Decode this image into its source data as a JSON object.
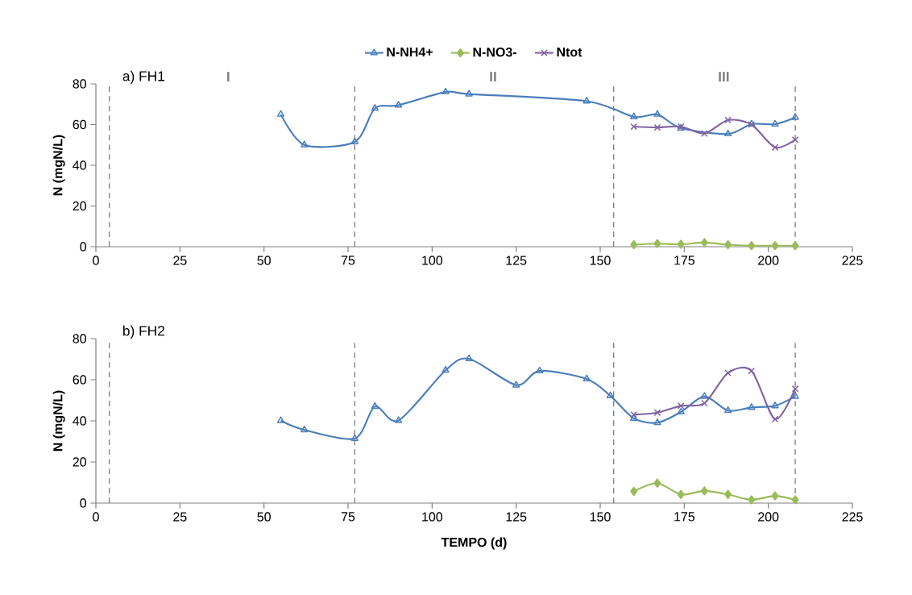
{
  "chart_data": [
    {
      "type": "line",
      "title": "a) FH1",
      "ylabel": "N (mgN/L)",
      "xlim": [
        0,
        225
      ],
      "ylim": [
        0,
        80
      ],
      "xticks": [
        0,
        25,
        50,
        75,
        100,
        125,
        150,
        175,
        200,
        225
      ],
      "yticks": [
        0,
        20,
        40,
        60,
        80
      ],
      "legend": "top",
      "series": [
        {
          "name": "N-NH4+",
          "color": "#4a7ebb",
          "marker": "triangle",
          "x": [
            55,
            62,
            77,
            83,
            90,
            104,
            111,
            146,
            160,
            167,
            174,
            188,
            195,
            202,
            208
          ],
          "values": [
            65,
            50,
            51.5,
            68,
            69.5,
            76,
            75,
            71.5,
            63.8,
            65,
            58.2,
            55.4,
            60.2,
            60.2,
            63.5
          ]
        },
        {
          "name": "N-NO3-",
          "color": "#9bbb59",
          "marker": "diamond",
          "x": [
            160,
            167,
            174,
            181,
            188,
            195,
            202,
            208
          ],
          "values": [
            1,
            1.5,
            1.2,
            2,
            1,
            0.5,
            0.5,
            0.5
          ]
        },
        {
          "name": "Ntot",
          "color": "#8064a2",
          "marker": "cross",
          "x": [
            160,
            167,
            174,
            181,
            188,
            195,
            202,
            208
          ],
          "values": [
            59,
            58.6,
            59,
            55.6,
            62.2,
            60,
            48.8,
            52.5
          ]
        }
      ],
      "ref_lines": [
        {
          "axis": "x",
          "value": 4,
          "color": "#7f7f7f",
          "line_style": "dashed"
        },
        {
          "axis": "x",
          "value": 77,
          "color": "#7f7f7f",
          "line_style": "dashed"
        },
        {
          "axis": "x",
          "value": 154,
          "color": "#7f7f7f",
          "line_style": "dashed"
        },
        {
          "axis": "x",
          "value": 208,
          "color": "#7f7f7f",
          "line_style": "dashed"
        }
      ],
      "annotations": [
        "I",
        "II",
        "III"
      ]
    },
    {
      "type": "line",
      "title": "b) FH2",
      "xlabel": "TEMPO (d)",
      "ylabel": "N (mgN/L)",
      "xlim": [
        0,
        225
      ],
      "ylim": [
        0,
        80
      ],
      "xticks": [
        0,
        25,
        50,
        75,
        100,
        125,
        150,
        175,
        200,
        225
      ],
      "yticks": [
        0,
        20,
        40,
        60,
        80
      ],
      "series": [
        {
          "color": "#4a7ebb",
          "marker": "triangle",
          "x": [
            55,
            62,
            77,
            83,
            90,
            104,
            111,
            125,
            132,
            146,
            153,
            160,
            167,
            174,
            181,
            188,
            195,
            202,
            208
          ],
          "values": [
            40.1,
            35.6,
            31.4,
            47,
            40.1,
            64.6,
            70.2,
            57.4,
            64.3,
            60.4,
            52.2,
            41.2,
            39.1,
            44.3,
            51.9,
            45,
            46.5,
            47.3,
            51.9
          ]
        },
        {
          "color": "#9bbb59",
          "marker": "diamond",
          "x": [
            160,
            167,
            174,
            181,
            188,
            195,
            202,
            208
          ],
          "values": [
            5.7,
            9.7,
            4.2,
            5.9,
            4.2,
            1.6,
            3.5,
            1.6
          ]
        },
        {
          "color": "#8064a2",
          "marker": "cross",
          "x": [
            160,
            167,
            174,
            181,
            188,
            195,
            202,
            208
          ],
          "values": [
            43,
            44,
            47.3,
            48.6,
            63.3,
            64.3,
            40.8,
            55.6
          ]
        }
      ],
      "ref_lines": [
        {
          "axis": "x",
          "value": 4,
          "color": "#7f7f7f",
          "line_style": "dashed"
        },
        {
          "axis": "x",
          "value": 77,
          "color": "#7f7f7f",
          "line_style": "dashed"
        },
        {
          "axis": "x",
          "value": 154,
          "color": "#7f7f7f",
          "line_style": "dashed"
        },
        {
          "axis": "x",
          "value": 208,
          "color": "#7f7f7f",
          "line_style": "dashed"
        }
      ]
    }
  ]
}
